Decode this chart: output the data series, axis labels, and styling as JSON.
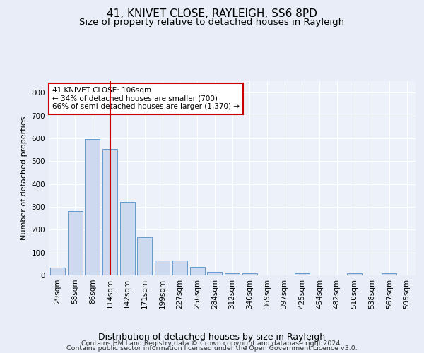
{
  "title1": "41, KNIVET CLOSE, RAYLEIGH, SS6 8PD",
  "title2": "Size of property relative to detached houses in Rayleigh",
  "xlabel": "Distribution of detached houses by size in Rayleigh",
  "ylabel": "Number of detached properties",
  "bar_labels": [
    "29sqm",
    "58sqm",
    "86sqm",
    "114sqm",
    "142sqm",
    "171sqm",
    "199sqm",
    "227sqm",
    "256sqm",
    "284sqm",
    "312sqm",
    "340sqm",
    "369sqm",
    "397sqm",
    "425sqm",
    "454sqm",
    "482sqm",
    "510sqm",
    "538sqm",
    "567sqm",
    "595sqm"
  ],
  "bar_values": [
    35,
    280,
    597,
    553,
    323,
    168,
    65,
    65,
    38,
    15,
    10,
    8,
    0,
    0,
    8,
    0,
    0,
    8,
    0,
    8,
    0
  ],
  "bar_color": "#ccd9ee",
  "bar_edge_color": "#6699cc",
  "vline_x": 3.0,
  "vline_color": "#cc0000",
  "annotation_text": "41 KNIVET CLOSE: 106sqm\n← 34% of detached houses are smaller (700)\n66% of semi-detached houses are larger (1,370) →",
  "annotation_box_color": "#ffffff",
  "annotation_box_edge": "#cc0000",
  "ylim": [
    0,
    850
  ],
  "yticks": [
    0,
    100,
    200,
    300,
    400,
    500,
    600,
    700,
    800
  ],
  "footer1": "Contains HM Land Registry data © Crown copyright and database right 2024.",
  "footer2": "Contains public sector information licensed under the Open Government Licence v3.0.",
  "background_color": "#e8edf8",
  "plot_bg_color": "#edf2fa",
  "grid_color": "#ffffff",
  "title1_fontsize": 11,
  "title2_fontsize": 9.5,
  "xlabel_fontsize": 9,
  "ylabel_fontsize": 8,
  "tick_fontsize": 7.5,
  "footer_fontsize": 6.8
}
